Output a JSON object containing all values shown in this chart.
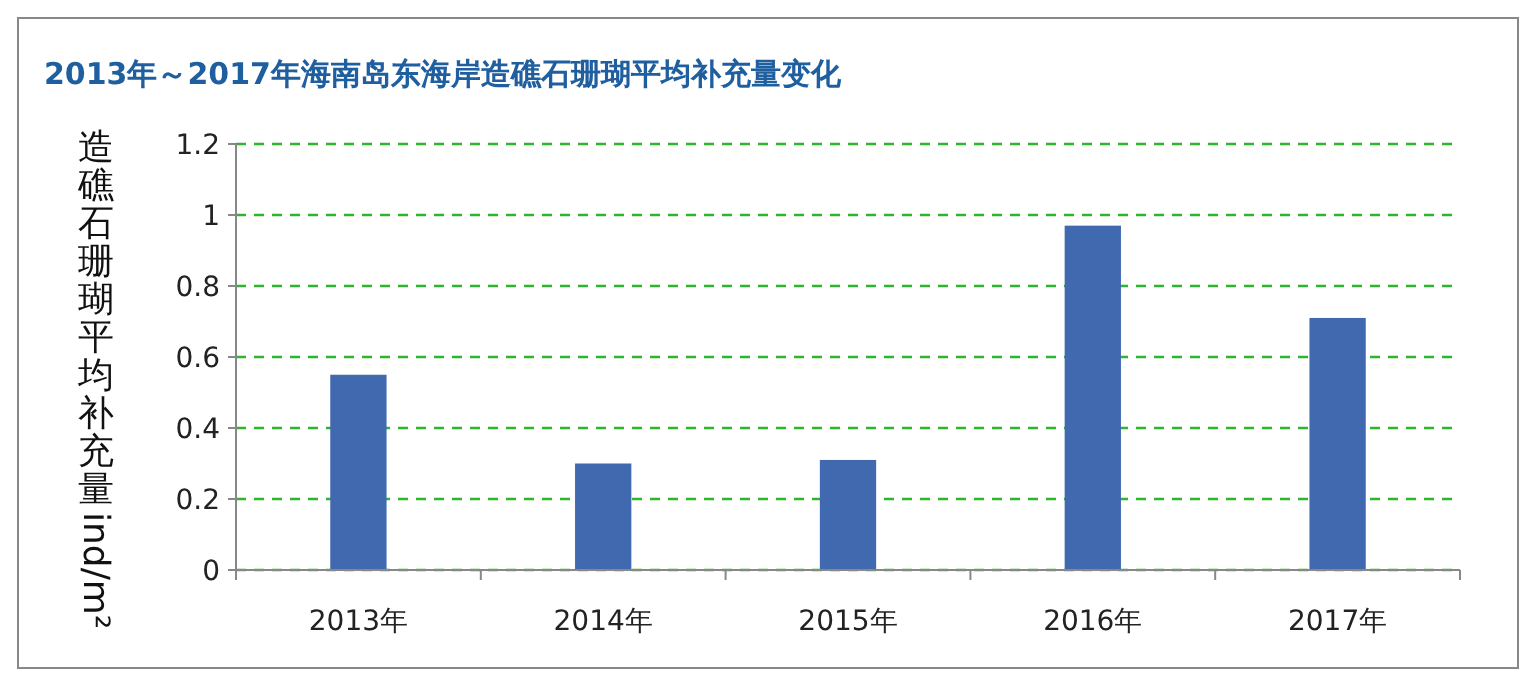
{
  "chart_data": {
    "type": "bar",
    "title": "2013年～2017年海南岛东海岸造礁石珊瑚平均补充量变化",
    "ylabel": "造礁石珊瑚平均补充量ind/m²",
    "categories": [
      "2013年",
      "2014年",
      "2015年",
      "2016年",
      "2017年"
    ],
    "values": [
      0.55,
      0.3,
      0.31,
      0.97,
      0.71
    ],
    "color": "#4169b0",
    "ylim": [
      0,
      1.2
    ],
    "yticks": [
      0,
      0.2,
      0.4,
      0.6,
      0.8,
      1,
      1.2
    ],
    "grid": "y"
  }
}
